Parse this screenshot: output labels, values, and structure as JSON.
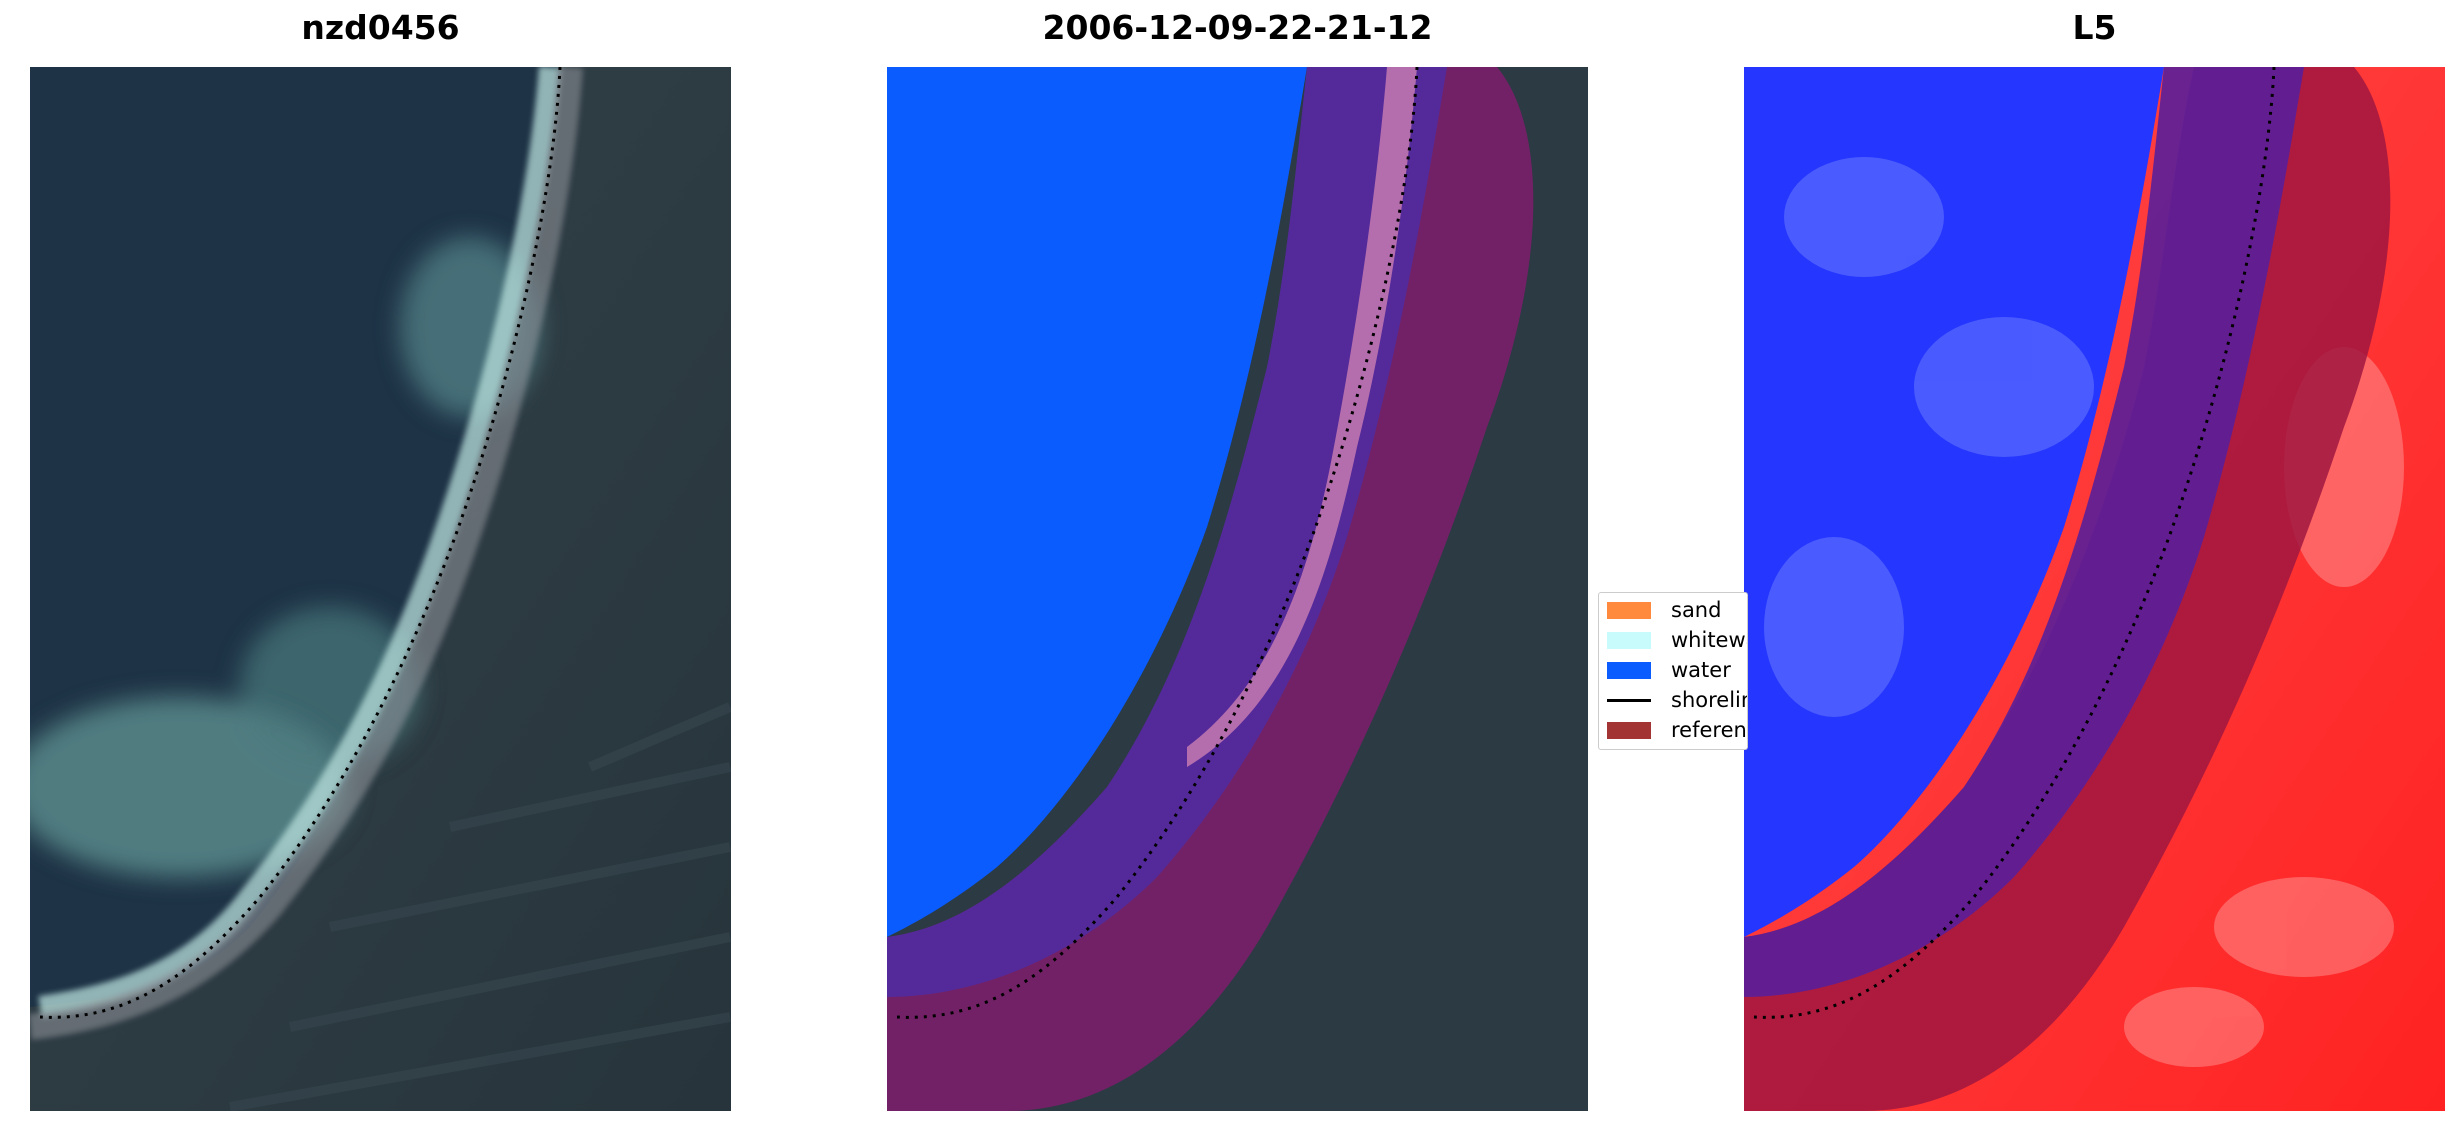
{
  "panels": [
    {
      "title": "nzd0456"
    },
    {
      "title": "2006-12-09-22-21-12"
    },
    {
      "title": "L5"
    }
  ],
  "legend": {
    "items": [
      {
        "label": "sand",
        "color": "#ff8a3d",
        "kind": "patch"
      },
      {
        "label": "whitewa",
        "color": "#c8fbfb",
        "kind": "patch"
      },
      {
        "label": "water",
        "color": "#0a5cff",
        "kind": "patch"
      },
      {
        "label": "shorelin",
        "color": "#000000",
        "kind": "line"
      },
      {
        "label": "referenc",
        "color": "#a33434",
        "kind": "patch"
      }
    ]
  },
  "colors": {
    "water_class": "#0a5cff",
    "reference_buffer": "#9b1f5f",
    "land_dark": "#2a3a44",
    "ocean_dark": "#1d3447",
    "surf": "#9fc9c0",
    "index_water": "#1f2bff",
    "index_land": "#ff2a2a"
  }
}
